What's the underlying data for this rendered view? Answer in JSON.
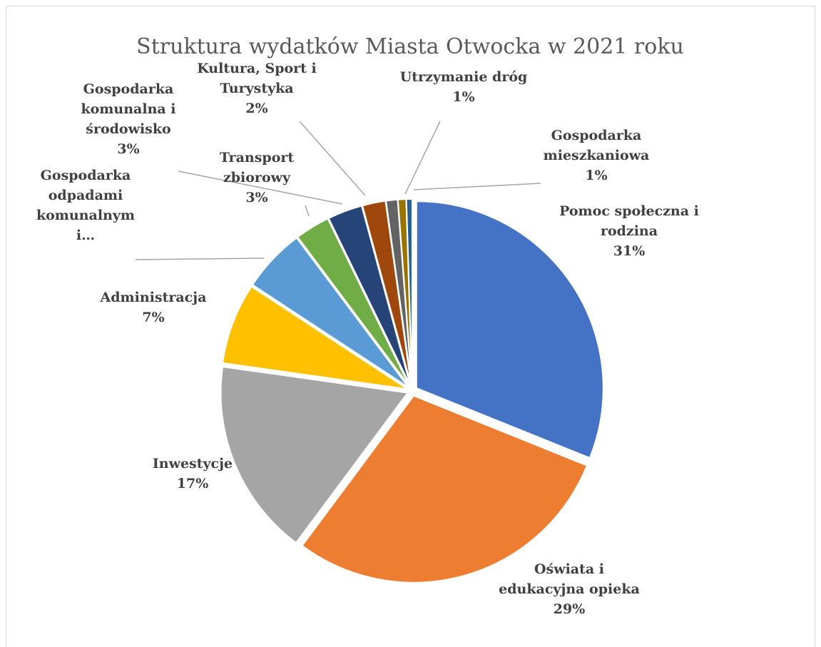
{
  "chart_data": {
    "type": "pie",
    "title": "Struktura wydatków Miasta Otwocka w 2021 roku",
    "slices": [
      {
        "label": [
          "Pomoc społeczna i",
          "rodzina"
        ],
        "percent_label": "31%",
        "value": 31,
        "color": "#4472C4"
      },
      {
        "label": [
          "Oświata i",
          "edukacyjna opieka"
        ],
        "percent_label": "29%",
        "value": 29,
        "color": "#ED7D31"
      },
      {
        "label": [
          "Inwestycje"
        ],
        "percent_label": "17%",
        "value": 17,
        "color": "#A5A5A5"
      },
      {
        "label": [
          "Administracja"
        ],
        "percent_label": "7%",
        "value": 7,
        "color": "#FFC000"
      },
      {
        "label": [
          "Gospodarka",
          "odpadami",
          "komunalnym",
          "i…"
        ],
        "percent_label": "",
        "value": 5.5,
        "color": "#5B9BD5"
      },
      {
        "label": [
          "Transport",
          "zbiorowy"
        ],
        "percent_label": "3%",
        "value": 3,
        "color": "#70AD47"
      },
      {
        "label": [
          "Gospodarka",
          "komunalna i",
          "środowisko"
        ],
        "percent_label": "3%",
        "value": 3,
        "color": "#264478"
      },
      {
        "label": [
          "Kultura, Sport i",
          "Turystyka"
        ],
        "percent_label": "2%",
        "value": 2,
        "color": "#9E480E"
      },
      {
        "label": [
          "Utrzymanie dróg"
        ],
        "percent_label": "1%",
        "value": 1,
        "color": "#636363"
      },
      {
        "label": [
          "Gospodarka",
          "mieszkaniowa"
        ],
        "percent_label": "1%",
        "value": 0.7,
        "color": "#997300"
      },
      {
        "label": [],
        "percent_label": "",
        "value": 0.5,
        "color": "#255E91"
      }
    ],
    "legend": "none",
    "start_angle": "12 o'clock",
    "direction": "clockwise",
    "exploded": true
  }
}
